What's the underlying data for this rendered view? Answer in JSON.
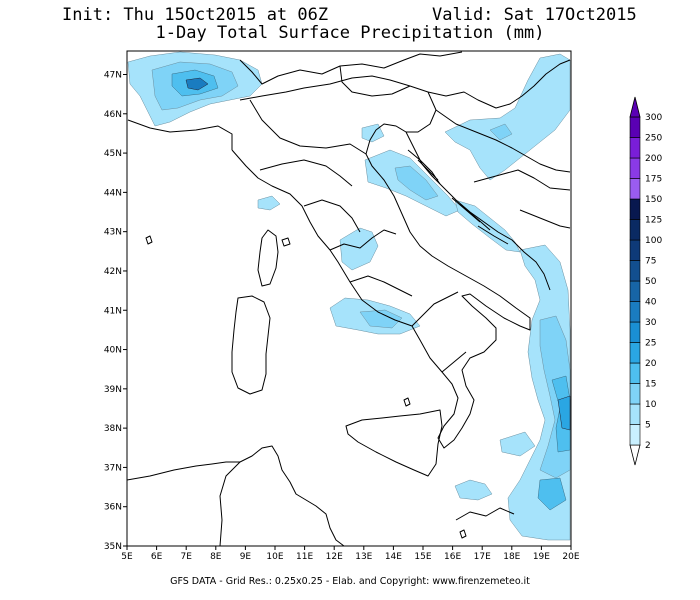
{
  "header": {
    "init": "Init: Thu 15Oct2015 at 06Z",
    "valid": "Valid: Sat 17Oct2015",
    "title": "1-Day Total Surface Precipitation (mm)"
  },
  "axes": {
    "lon_labels": [
      "5E",
      "6E",
      "7E",
      "8E",
      "9E",
      "10E",
      "11E",
      "12E",
      "13E",
      "14E",
      "15E",
      "16E",
      "17E",
      "18E",
      "19E",
      "20E"
    ],
    "lat_labels": [
      "35N",
      "36N",
      "37N",
      "38N",
      "39N",
      "40N",
      "41N",
      "42N",
      "43N",
      "44N",
      "45N",
      "46N",
      "47N"
    ]
  },
  "legend": {
    "levels": [
      "2",
      "5",
      "10",
      "15",
      "20",
      "25",
      "30",
      "40",
      "50",
      "75",
      "100",
      "125",
      "150",
      "175",
      "200",
      "250",
      "300"
    ],
    "colors": [
      "#ffffff",
      "#c9f0ff",
      "#a6e3fb",
      "#7fd3f7",
      "#4ebfef",
      "#2aa6e3",
      "#1a8fd4",
      "#1a7cc0",
      "#1765a6",
      "#124f8f",
      "#0e3a78",
      "#0a2a63",
      "#08184f",
      "#9a5cf0",
      "#8a3ae6",
      "#7a1ed8",
      "#5a00b4"
    ],
    "scale_max": 300
  },
  "footer": "GFS DATA - Grid Res.: 0.25x0.25 - Elab. and Copyright: www.firenzemeteo.it"
}
